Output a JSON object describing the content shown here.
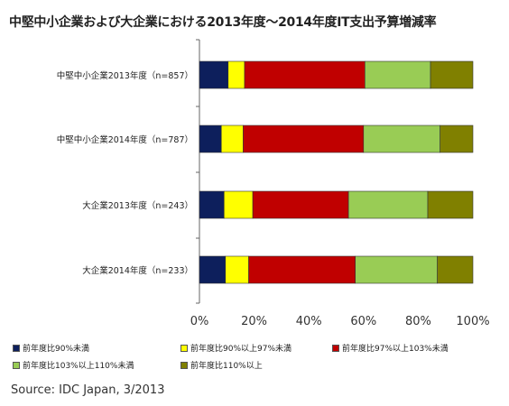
{
  "chart_data": {
    "type": "bar",
    "orientation": "horizontal",
    "stacked": "percent",
    "title": "中堅中小企業および大企業における2013年度～2014年度IT支出予算増減率",
    "categories": [
      "中堅中小企業2013年度（n=857）",
      "中堅中小企業2014年度（n=787）",
      "大企業2013年度（n=243）",
      "大企業2014年度（n=233）"
    ],
    "series": [
      {
        "name": "前年度比90%未満",
        "color": "#0d1f5c",
        "values": [
          10.5,
          8.0,
          9.0,
          9.5
        ]
      },
      {
        "name": "前年度比90%以上97%未満",
        "color": "#ffff00",
        "values": [
          6.0,
          8.0,
          10.5,
          8.5
        ]
      },
      {
        "name": "前年度比97%以上103%未満",
        "color": "#c00000",
        "values": [
          44.0,
          44.0,
          35.0,
          39.0
        ]
      },
      {
        "name": "前年度比103%以上110%未満",
        "color": "#99cc55",
        "values": [
          24.0,
          28.0,
          29.0,
          30.0
        ]
      },
      {
        "name": "前年度比110%以上",
        "color": "#808000",
        "values": [
          15.5,
          12.0,
          16.5,
          13.0
        ]
      }
    ],
    "xlim": [
      0,
      100
    ],
    "xticks": [
      "0%",
      "20%",
      "40%",
      "60%",
      "80%",
      "100%"
    ],
    "grid": false,
    "legend_position": "bottom"
  },
  "source": "Source: IDC Japan, 3/2013"
}
